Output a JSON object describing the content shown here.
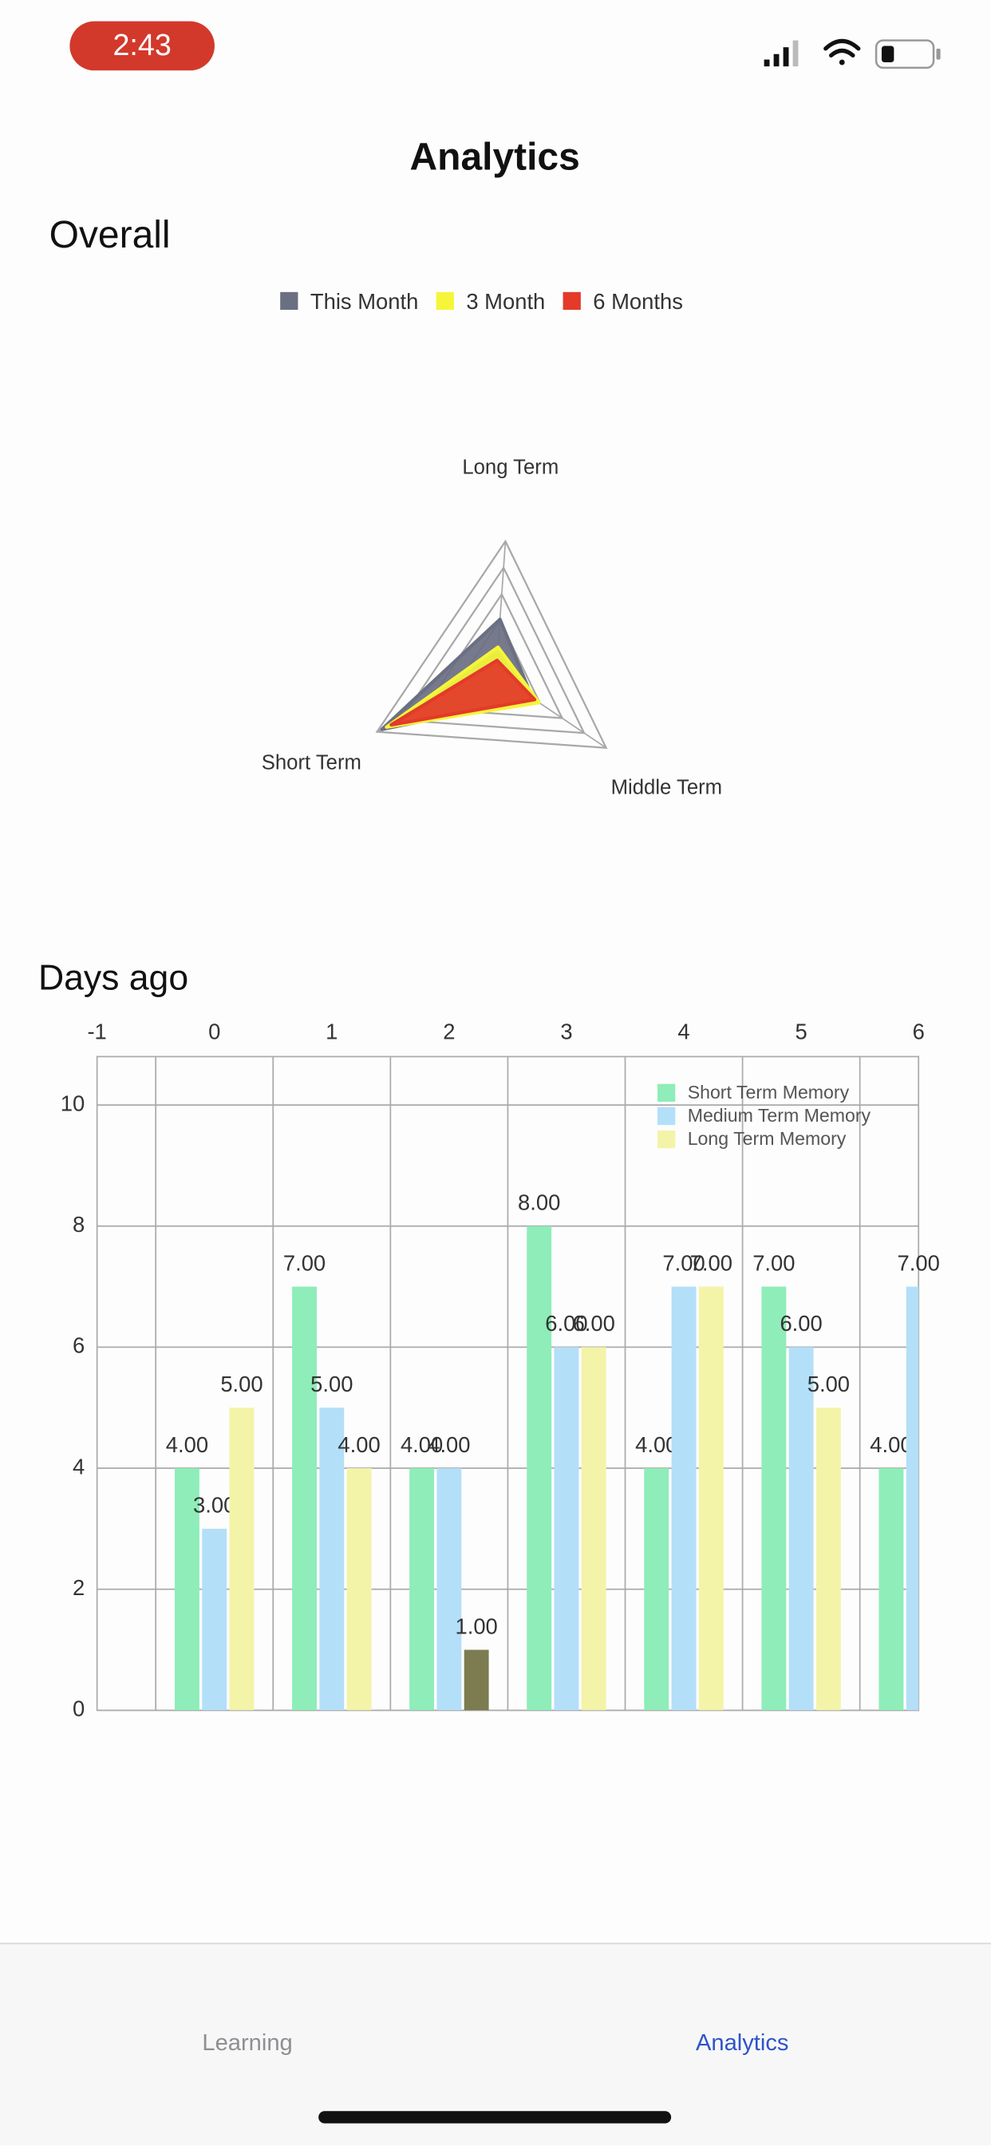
{
  "status_bar": {
    "time": "2:43"
  },
  "header": {
    "title": "Analytics",
    "section": "Overall"
  },
  "chart_data": [
    {
      "type": "radar",
      "legend": "top",
      "axes": [
        "Long Term",
        "Middle Term",
        "Short Term"
      ],
      "rlim": [
        0,
        10
      ],
      "series": [
        {
          "name": "This Month",
          "color": "#6b6f82",
          "values": [
            4.1,
            3.3,
            9.6
          ]
        },
        {
          "name": "3 Month",
          "color": "#f5f53a",
          "values": [
            2,
            3.9,
            9.2
          ]
        },
        {
          "name": "6 Months",
          "color": "#e33a2a",
          "values": [
            1,
            3.5,
            8.8
          ]
        }
      ]
    },
    {
      "type": "bar",
      "title": "Days ago",
      "x": [
        0,
        1,
        2,
        3,
        4,
        5,
        6
      ],
      "xlim": [
        -1,
        6
      ],
      "xticks": [
        -1,
        0,
        1,
        2,
        3,
        4,
        5,
        6
      ],
      "ylim": [
        0,
        10.8
      ],
      "yticks": [
        0,
        2,
        4,
        6,
        8,
        10
      ],
      "grid": true,
      "legend": "upper right",
      "highlight": [
        2,
        2
      ],
      "highlight_color": "#7d7b50",
      "series": [
        {
          "name": "Short Term Memory",
          "color": "#8eedb8",
          "values": [
            4,
            7,
            4,
            8,
            4,
            7,
            4
          ],
          "value_labels": [
            "4.00",
            "7.00",
            "4.00",
            "8.00",
            "4.00",
            "7.00",
            "4.00"
          ]
        },
        {
          "name": "Medium Term Memory",
          "color": "#b3dff9",
          "values": [
            3,
            5,
            4,
            6,
            7,
            6,
            7
          ],
          "value_labels": [
            "3.00",
            "5.00",
            "4.00",
            "6.00",
            "7.00",
            "6.00",
            "7.00"
          ]
        },
        {
          "name": "Long Term Memory",
          "color": "#f3f4a8",
          "values": [
            5,
            4,
            1,
            6,
            7,
            5,
            null
          ],
          "value_labels": [
            "5.00",
            "4.00",
            "1.00",
            "6.00",
            "7.00",
            "5.00",
            null
          ]
        }
      ]
    }
  ],
  "tab_bar": {
    "tabs": [
      "Learning",
      "Analytics"
    ],
    "active": 1
  }
}
